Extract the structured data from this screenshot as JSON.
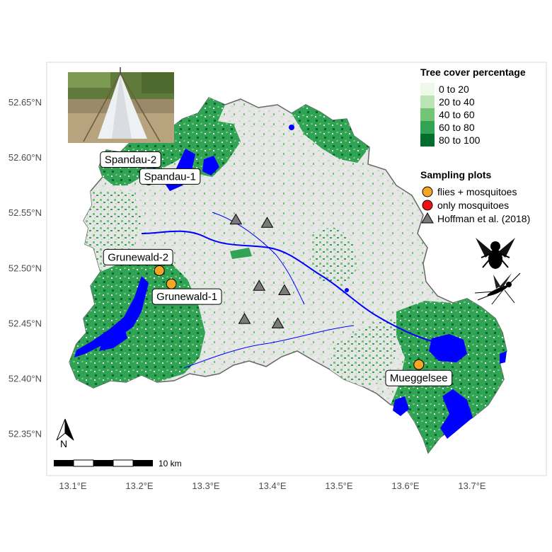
{
  "axes": {
    "x_ticks": [
      "13.1°E",
      "13.2°E",
      "13.3°E",
      "13.4°E",
      "13.5°E",
      "13.6°E",
      "13.7°E"
    ],
    "y_ticks": [
      "52.65°N",
      "52.60°N",
      "52.55°N",
      "52.50°N",
      "52.45°N",
      "52.40°N",
      "52.35°N"
    ]
  },
  "legend_tree": {
    "title": "Tree cover percentage",
    "items": [
      {
        "label": "0 to 20",
        "color": "#edf8e9"
      },
      {
        "label": "20 to 40",
        "color": "#bae4b3"
      },
      {
        "label": "40 to 60",
        "color": "#74c476"
      },
      {
        "label": "60 to 80",
        "color": "#31a354"
      },
      {
        "label": "80 to 100",
        "color": "#006d2c"
      }
    ]
  },
  "legend_plots": {
    "title": "Sampling plots",
    "items": [
      {
        "label": "flies + mosquitoes",
        "shape": "circle",
        "color": "#f5a623"
      },
      {
        "label": "only mosquitoes",
        "shape": "circle",
        "color": "#ee1111"
      },
      {
        "label": "Hoffman et al. (2018)",
        "shape": "triangle",
        "color": "#7a7a7a"
      }
    ]
  },
  "plots": [
    {
      "label": "Spandau-2",
      "type": "only mosquitoes",
      "lon": 13.208,
      "lat": 52.585
    },
    {
      "label": "Spandau-1",
      "type": "flies + mosquitoes",
      "lon": 13.214,
      "lat": 52.58
    },
    {
      "label": "Grunewald-2",
      "type": "flies + mosquitoes",
      "lon": 13.23,
      "lat": 52.498
    },
    {
      "label": "Grunewald-1",
      "type": "flies + mosquitoes",
      "lon": 13.248,
      "lat": 52.486
    },
    {
      "label": "Mueggelsee",
      "type": "flies + mosquitoes",
      "lon": 13.62,
      "lat": 52.413
    }
  ],
  "hoffman_sites": [
    {
      "lon": 13.345,
      "lat": 52.544
    },
    {
      "lon": 13.392,
      "lat": 52.541
    },
    {
      "lon": 13.38,
      "lat": 52.484
    },
    {
      "lon": 13.418,
      "lat": 52.48
    },
    {
      "lon": 13.358,
      "lat": 52.454
    },
    {
      "lon": 13.408,
      "lat": 52.45
    }
  ],
  "scale_bar": {
    "label": "10 km"
  },
  "north_arrow": {
    "label": "N"
  },
  "colors": {
    "water": "#0000ff",
    "built": "#e6e6e6",
    "outline": "#666666",
    "triangle": "#7a7a7a"
  },
  "icons": [
    "fly-silhouette-icon",
    "mosquito-silhouette-icon",
    "north-arrow-icon",
    "trap-photo"
  ]
}
